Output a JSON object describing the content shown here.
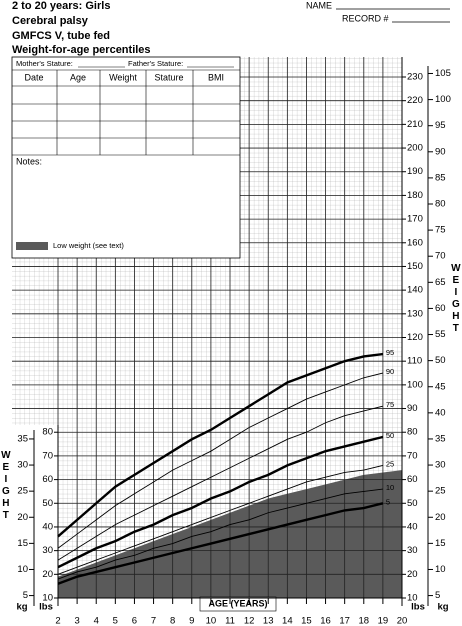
{
  "form": {
    "title": [
      "2 to 20 years: Girls",
      "Cerebral palsy",
      "GMFCS V, tube fed",
      "Weight-for-age percentiles"
    ],
    "name_label": "NAME",
    "record_label": "RECORD #",
    "mother_stature": "Mother's Stature:",
    "father_stature": "Father's Stature:",
    "columns": [
      "Date",
      "Age",
      "Weight",
      "Stature",
      "BMI"
    ],
    "notes": "Notes:"
  },
  "chart_data": {
    "type": "line",
    "x": [
      2,
      3,
      4,
      5,
      6,
      7,
      8,
      9,
      10,
      11,
      12,
      13,
      14,
      15,
      16,
      17,
      18,
      19,
      20
    ],
    "xlim": [
      2,
      20
    ],
    "xticks": [
      2,
      3,
      4,
      5,
      6,
      7,
      8,
      9,
      10,
      11,
      12,
      13,
      14,
      15,
      16,
      17,
      18,
      19,
      20
    ],
    "xlabel": "AGE (YEARS)",
    "ylabel": "WEIGHT",
    "y_unit": "lbs",
    "y2_unit": "kg",
    "ylim": [
      10,
      230
    ],
    "yticks": [
      10,
      20,
      30,
      40,
      50,
      60,
      70,
      80,
      90,
      100,
      110,
      120,
      130,
      140,
      150,
      160,
      170,
      180,
      190,
      200,
      210,
      220,
      230
    ],
    "y2lim": [
      4.5359,
      104.3262
    ],
    "y2ticks": [
      5,
      10,
      15,
      20,
      25,
      30,
      35,
      40,
      45,
      50,
      55,
      60,
      65,
      70,
      75,
      80,
      85,
      90,
      95,
      100,
      105
    ],
    "left_yticks": [
      10,
      20,
      30,
      40,
      50,
      60,
      70,
      80
    ],
    "left_y2ticks": [
      5,
      10,
      15,
      20,
      25,
      30,
      35
    ],
    "grid": true,
    "area": {
      "name": "Low weight (see text)",
      "color": "#5a5a5a",
      "values": [
        19,
        22,
        25,
        28,
        31,
        34,
        37,
        40,
        43,
        46,
        49,
        52,
        54,
        56,
        58,
        60,
        62,
        63,
        64
      ]
    },
    "series": [
      {
        "name": "95",
        "color": "#000000",
        "width": 2.4,
        "values": [
          36,
          43,
          50,
          57,
          62,
          67,
          72,
          77,
          81,
          86,
          91,
          96,
          101,
          104,
          107,
          110,
          112,
          113,
          null
        ]
      },
      {
        "name": "90",
        "color": "#000000",
        "width": 0.9,
        "values": [
          31,
          37,
          43,
          49,
          54,
          59,
          64,
          68,
          72,
          77,
          82,
          86,
          90,
          94,
          97,
          100,
          103,
          105,
          null
        ]
      },
      {
        "name": "75",
        "color": "#000000",
        "width": 0.9,
        "values": [
          26,
          31,
          36,
          41,
          45,
          49,
          53,
          57,
          61,
          65,
          69,
          73,
          77,
          80,
          84,
          87,
          89,
          91,
          null
        ]
      },
      {
        "name": "50",
        "color": "#000000",
        "width": 2.4,
        "values": [
          23,
          27,
          31,
          34,
          38,
          41,
          45,
          48,
          52,
          55,
          59,
          62,
          66,
          69,
          72,
          74,
          76,
          78,
          null
        ]
      },
      {
        "name": "25",
        "color": "#000000",
        "width": 0.9,
        "values": [
          20,
          23,
          26,
          29,
          32,
          35,
          38,
          41,
          44,
          47,
          50,
          53,
          56,
          59,
          61,
          63,
          64,
          66,
          null
        ]
      },
      {
        "name": "10",
        "color": "#000000",
        "width": 0.9,
        "values": [
          18,
          21,
          23,
          26,
          28,
          31,
          33,
          36,
          38,
          41,
          43,
          46,
          48,
          50,
          52,
          54,
          55,
          56,
          null
        ]
      },
      {
        "name": "5",
        "color": "#000000",
        "width": 2.4,
        "values": [
          16,
          19,
          21,
          23,
          25,
          27,
          29,
          31,
          33,
          35,
          37,
          39,
          41,
          43,
          45,
          47,
          48,
          50,
          null
        ]
      }
    ]
  }
}
